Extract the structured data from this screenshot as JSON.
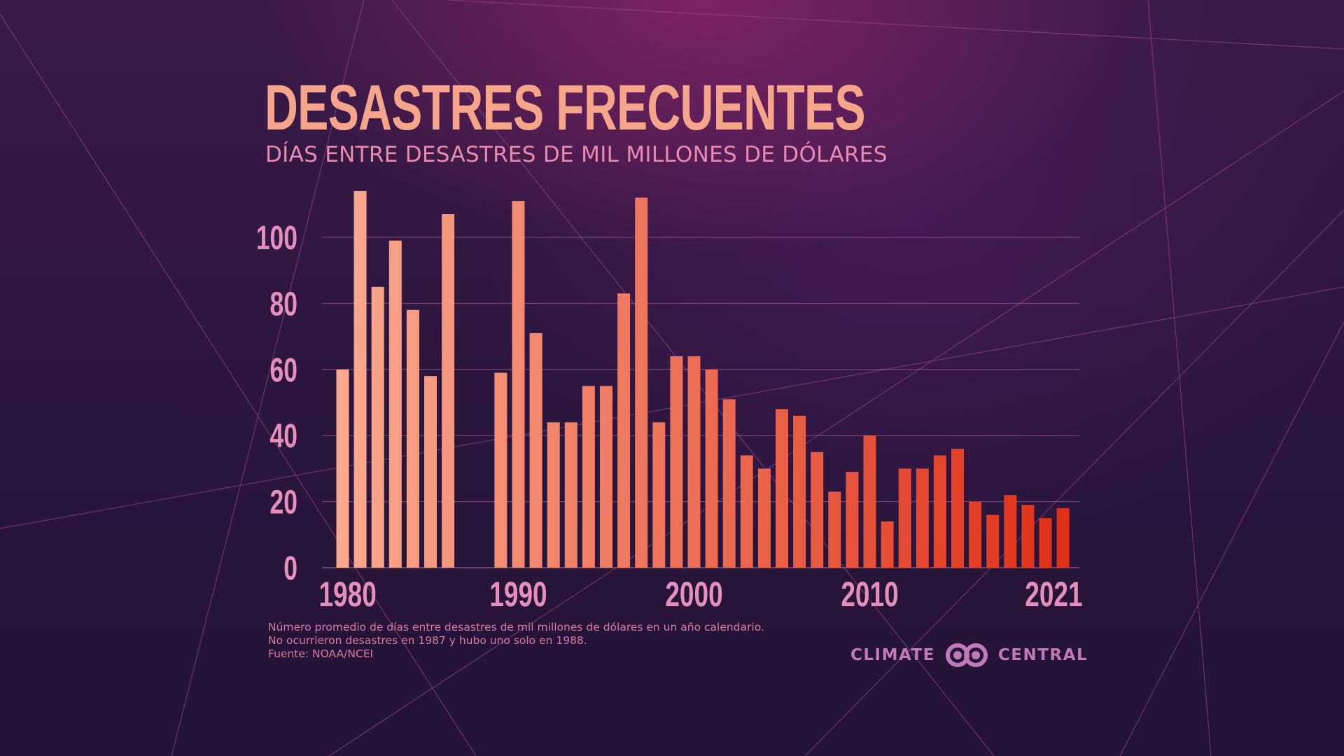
{
  "title": "DESASTRES FRECUENTES",
  "subtitle": "DÍAS ENTRE DESASTRES DE MIL MILLONES DE DÓLARES",
  "footnotes": [
    "Número promedio de días entre desastres de mil millones de dólares en un año calendario.",
    "No ocurrieron desastres en 1987 y hubo uno solo en 1988.",
    "Fuente: NOAA/NCEI"
  ],
  "logo": {
    "left_text": "CLIMATE",
    "right_text": "CENTRAL",
    "icon": "climate-central-loop-icon"
  },
  "colors": {
    "bar_start": "#f8a88e",
    "bar_end": "#e0321a",
    "grid": "#b56a9c",
    "tick": "#e58fbd",
    "title": "#f6a58a",
    "subtitle": "#e98ab0"
  },
  "chart_data": {
    "type": "bar",
    "title": "DESASTRES FRECUENTES",
    "subtitle": "DÍAS ENTRE DESASTRES DE MIL MILLONES DE DÓLARES",
    "xlabel": "",
    "ylabel": "",
    "ylim": [
      0,
      115
    ],
    "yticks": [
      0,
      20,
      40,
      60,
      80,
      100
    ],
    "xtick_labels": [
      "1980",
      "1990",
      "2000",
      "2010",
      "2021"
    ],
    "grid": true,
    "categories": [
      1980,
      1981,
      1982,
      1983,
      1984,
      1985,
      1986,
      1987,
      1988,
      1989,
      1990,
      1991,
      1992,
      1993,
      1994,
      1995,
      1996,
      1997,
      1998,
      1999,
      2000,
      2001,
      2002,
      2003,
      2004,
      2005,
      2006,
      2007,
      2008,
      2009,
      2010,
      2011,
      2012,
      2013,
      2014,
      2015,
      2016,
      2017,
      2018,
      2019,
      2020,
      2021
    ],
    "values": [
      60,
      114,
      85,
      99,
      78,
      58,
      107,
      null,
      null,
      59,
      111,
      71,
      44,
      44,
      55,
      55,
      83,
      112,
      44,
      64,
      64,
      60,
      51,
      34,
      30,
      48,
      46,
      35,
      23,
      29,
      40,
      14,
      30,
      30,
      34,
      36,
      20,
      16,
      22,
      19,
      15,
      18
    ]
  }
}
